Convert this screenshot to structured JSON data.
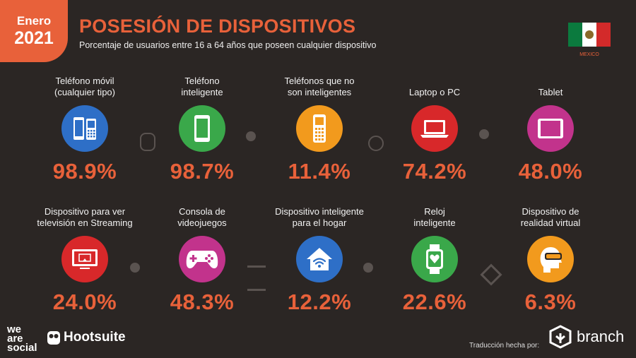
{
  "header": {
    "month": "Enero",
    "year": "2021",
    "title": "POSESIÓN DE DISPOSITIVOS",
    "subtitle": "Porcentaje de usuarios entre 16 a 64 años que poseen cualquier dispositivo",
    "country": "MEXICO"
  },
  "colors": {
    "accent": "#e8613a",
    "bg": "#2b2624"
  },
  "devices": [
    {
      "label1": "Teléfono móvil",
      "label2": "(cualquier tipo)",
      "value": "98.9%",
      "color": "#2e6fc7",
      "icon": "phones-icon"
    },
    {
      "label1": "Teléfono",
      "label2": "inteligente",
      "value": "98.7%",
      "color": "#3aa84a",
      "icon": "smartphone-icon"
    },
    {
      "label1": "Teléfonos que no",
      "label2": "son inteligentes",
      "value": "11.4%",
      "color": "#f29a1d",
      "icon": "feature-phone-icon"
    },
    {
      "label1": "Laptop o PC",
      "label2": "",
      "value": "74.2%",
      "color": "#d8282a",
      "icon": "laptop-icon"
    },
    {
      "label1": "Tablet",
      "label2": "",
      "value": "48.0%",
      "color": "#c2338c",
      "icon": "tablet-icon"
    },
    {
      "label1": "Dispositivo para ver",
      "label2": "televisión en Streaming",
      "value": "24.0%",
      "color": "#d8282a",
      "icon": "streaming-tv-icon"
    },
    {
      "label1": "Consola de",
      "label2": "videojuegos",
      "value": "48.3%",
      "color": "#c2338c",
      "icon": "gamepad-icon"
    },
    {
      "label1": "Dispositivo inteligente",
      "label2": "para el hogar",
      "value": "12.2%",
      "color": "#2e6fc7",
      "icon": "smart-home-icon"
    },
    {
      "label1": "Reloj",
      "label2": "inteligente",
      "value": "22.6%",
      "color": "#3aa84a",
      "icon": "smartwatch-icon"
    },
    {
      "label1": "Dispositivo de",
      "label2": "realidad virtual",
      "value": "6.3%",
      "color": "#f29a1d",
      "icon": "vr-headset-icon"
    }
  ],
  "footer": {
    "weare": "we are social",
    "hootsuite": "Hootsuite",
    "translation": "Traducción hecha por:",
    "branch": "branch"
  }
}
